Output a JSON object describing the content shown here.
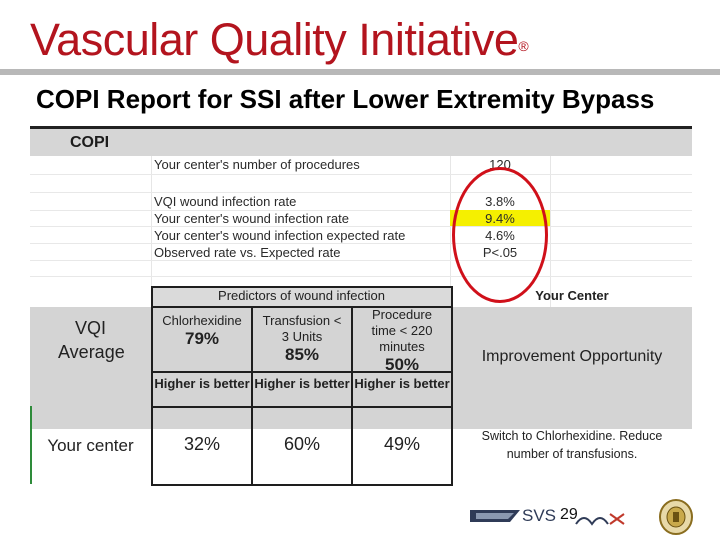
{
  "header": {
    "title": "Vascular Quality Initiative",
    "registered_mark": "®"
  },
  "slide": {
    "subtitle": "COPI Report  for SSI after Lower Extremity Bypass"
  },
  "copi": {
    "label": "COPI",
    "metrics": [
      {
        "label": "Your center's number of procedures",
        "value": "120"
      },
      {
        "label": "VQI wound infection rate",
        "value": "3.8%"
      },
      {
        "label": "Your center's wound infection rate",
        "value": "9.4%"
      },
      {
        "label": "Your center's wound infection expected rate",
        "value": "4.6%"
      },
      {
        "label": "Observed rate vs. Expected rate",
        "value": "P<.05"
      }
    ]
  },
  "predictors": {
    "header": "Predictors of wound infection",
    "your_center_header": "Your Center",
    "vqi_average_label": "VQI Average",
    "items": [
      {
        "name": "Chlorhexidine",
        "avg": "79%",
        "note": "Higher is better",
        "center": "32%"
      },
      {
        "name": "Transfusion < 3 Units",
        "avg": "85%",
        "note": "Higher is better",
        "center": "60%"
      },
      {
        "name": "Procedure time < 220 minutes",
        "avg": "50%",
        "note": "Higher is better",
        "center": "49%"
      }
    ],
    "improvement_label": "Improvement Opportunity",
    "your_center_label": "Your center",
    "recommendation": "Switch to Chlorhexidine. Reduce number of transfusions."
  },
  "footer": {
    "svs_text": "SVS",
    "page_number": "29"
  },
  "colors": {
    "brand_red": "#b3141e",
    "highlight_yellow": "#f5f000",
    "circle_red": "#d0101a",
    "row_gray": "#d4d4d4"
  }
}
